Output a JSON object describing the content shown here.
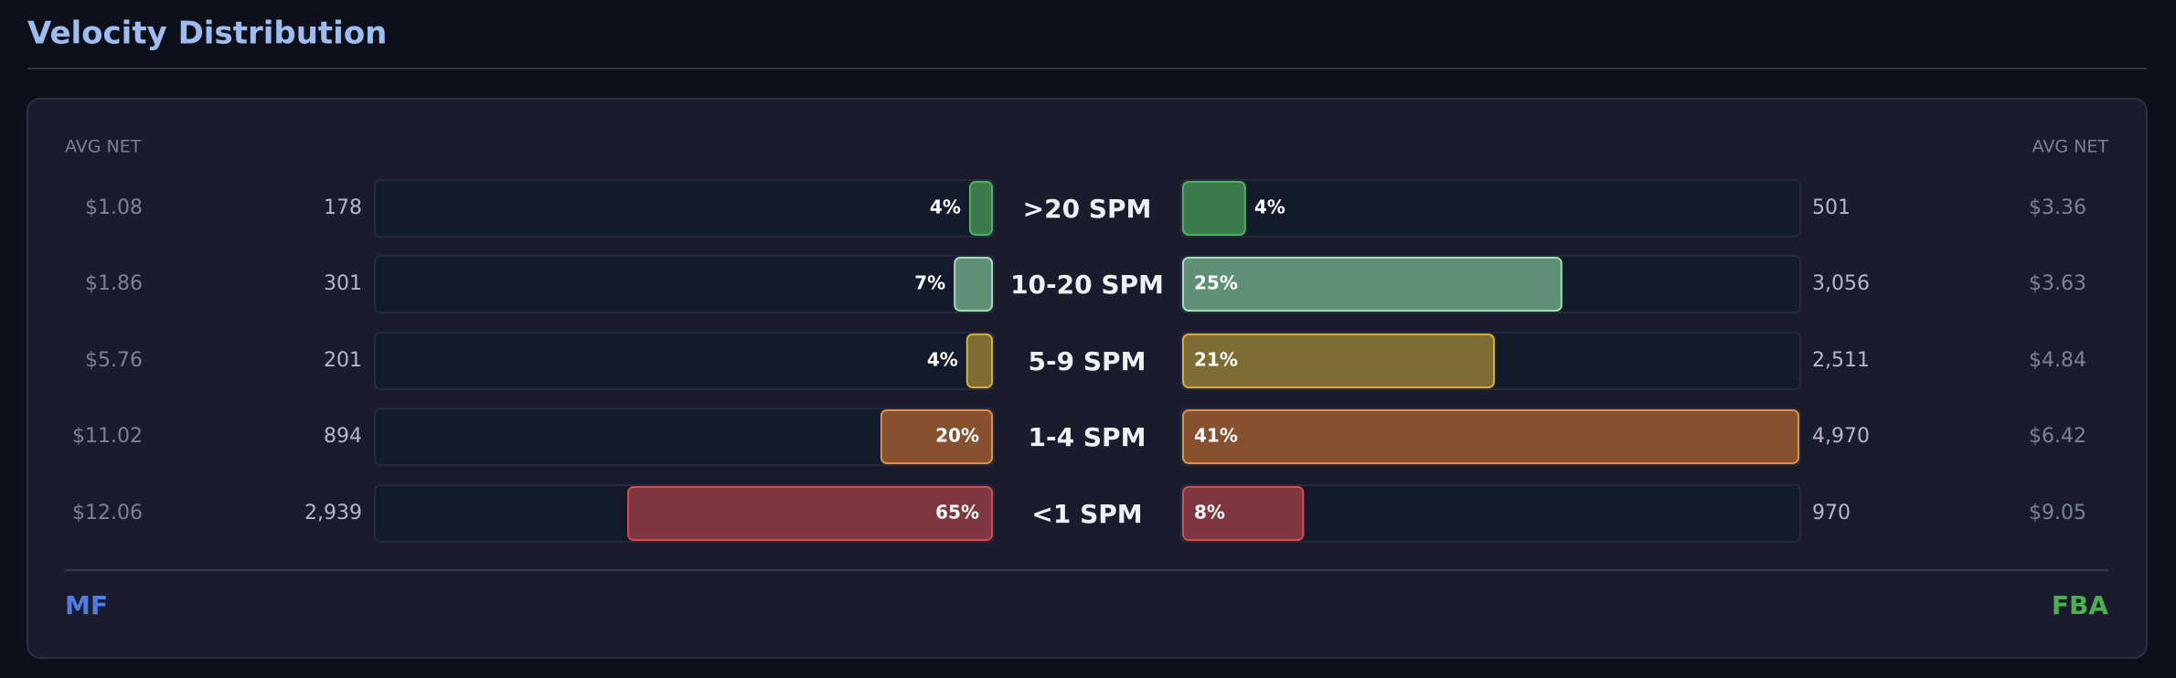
{
  "chart_data": {
    "type": "butterfly-bar",
    "title": "Velocity Distribution",
    "left_header": "AVG NET",
    "right_header": "AVG NET",
    "categories": [
      ">20 SPM",
      "10-20 SPM",
      "5-9 SPM",
      "1-4 SPM",
      "<1 SPM"
    ],
    "colors": [
      "#3b7a4b",
      "#5f8f76",
      "#7f6b34",
      "#87512f",
      "#7e3640"
    ],
    "border_colors": [
      "#4fb062",
      "#a3dcb5",
      "#d8ac3a",
      "#e38d43",
      "#d64a52"
    ],
    "series": [
      {
        "name": "MF",
        "color": "#4f7fe3",
        "values": [
          178,
          301,
          201,
          894,
          2939
        ],
        "value_labels": [
          "178",
          "301",
          "201",
          "894",
          "2,939"
        ],
        "shares": [
          4,
          7,
          4,
          20,
          65
        ],
        "share_labels": [
          "4%",
          "7%",
          "4%",
          "20%",
          "65%"
        ],
        "avg_net": [
          1.08,
          1.86,
          5.76,
          11.02,
          12.06
        ],
        "avg_net_labels": [
          "$1.08",
          "$1.86",
          "$5.76",
          "$11.02",
          "$12.06"
        ]
      },
      {
        "name": "FBA",
        "color": "#4caf50",
        "values": [
          501,
          3056,
          2511,
          4970,
          970
        ],
        "value_labels": [
          "501",
          "3,056",
          "2,511",
          "4,970",
          "970"
        ],
        "shares": [
          4,
          25,
          21,
          41,
          8
        ],
        "share_labels": [
          "4%",
          "25%",
          "21%",
          "41%",
          "8%"
        ],
        "avg_net": [
          3.36,
          3.63,
          4.84,
          6.42,
          9.05
        ],
        "avg_net_labels": [
          "$3.36",
          "$3.63",
          "$4.84",
          "$6.42",
          "$9.05"
        ]
      }
    ]
  }
}
